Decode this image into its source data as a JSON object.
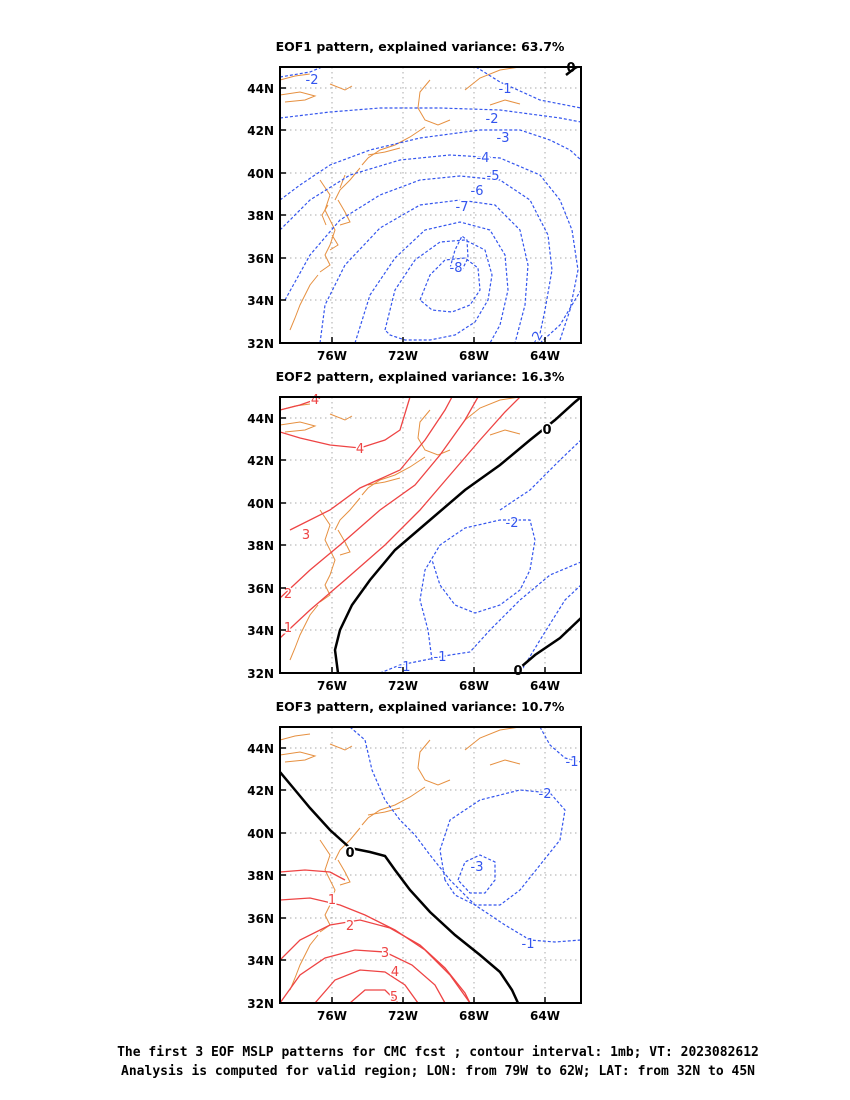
{
  "colors": {
    "negative": "#3355ee",
    "positive": "#ee4444",
    "zero": "#000000",
    "coast": "#e69040",
    "grid": "#aaaaaa"
  },
  "chart_data": [
    {
      "type": "contour",
      "title": "EOF1 pattern, explained variance: 63.7%",
      "xticks": [
        "76W",
        "72W",
        "68W",
        "64W"
      ],
      "yticks": [
        "44N",
        "42N",
        "40N",
        "38N",
        "36N",
        "34N",
        "32N"
      ],
      "xlim": [
        -79,
        -62
      ],
      "ylim": [
        32,
        45
      ],
      "contour_labels": [
        "-2",
        "-1",
        "-2",
        "-3",
        "-4",
        "-5",
        "-6",
        "-7",
        "-8",
        "0",
        "-2"
      ]
    },
    {
      "type": "contour",
      "title": "EOF2 pattern, explained variance: 16.3%",
      "xticks": [
        "76W",
        "72W",
        "68W",
        "64W"
      ],
      "yticks": [
        "44N",
        "42N",
        "40N",
        "38N",
        "36N",
        "34N",
        "32N"
      ],
      "xlim": [
        -79,
        -62
      ],
      "ylim": [
        32,
        45
      ],
      "contour_labels": [
        "4",
        "4",
        "3",
        "2",
        "1",
        "0",
        "-2",
        "-1",
        "-1",
        "0"
      ]
    },
    {
      "type": "contour",
      "title": "EOF3 pattern, explained variance: 10.7%",
      "xticks": [
        "76W",
        "72W",
        "68W",
        "64W"
      ],
      "yticks": [
        "44N",
        "42N",
        "40N",
        "38N",
        "36N",
        "34N",
        "32N"
      ],
      "xlim": [
        -79,
        -62
      ],
      "ylim": [
        32,
        45
      ],
      "contour_labels": [
        "-1",
        "-2",
        "-3",
        "-1",
        "0",
        "1",
        "2",
        "3",
        "4",
        "5"
      ]
    }
  ],
  "footer": {
    "line1": "The first 3 EOF MSLP patterns for CMC fcst ; contour interval: 1mb; VT: 2023082612",
    "line2": "Analysis is computed for valid region; LON: from 79W to 62W; LAT: from 32N to 45N"
  }
}
